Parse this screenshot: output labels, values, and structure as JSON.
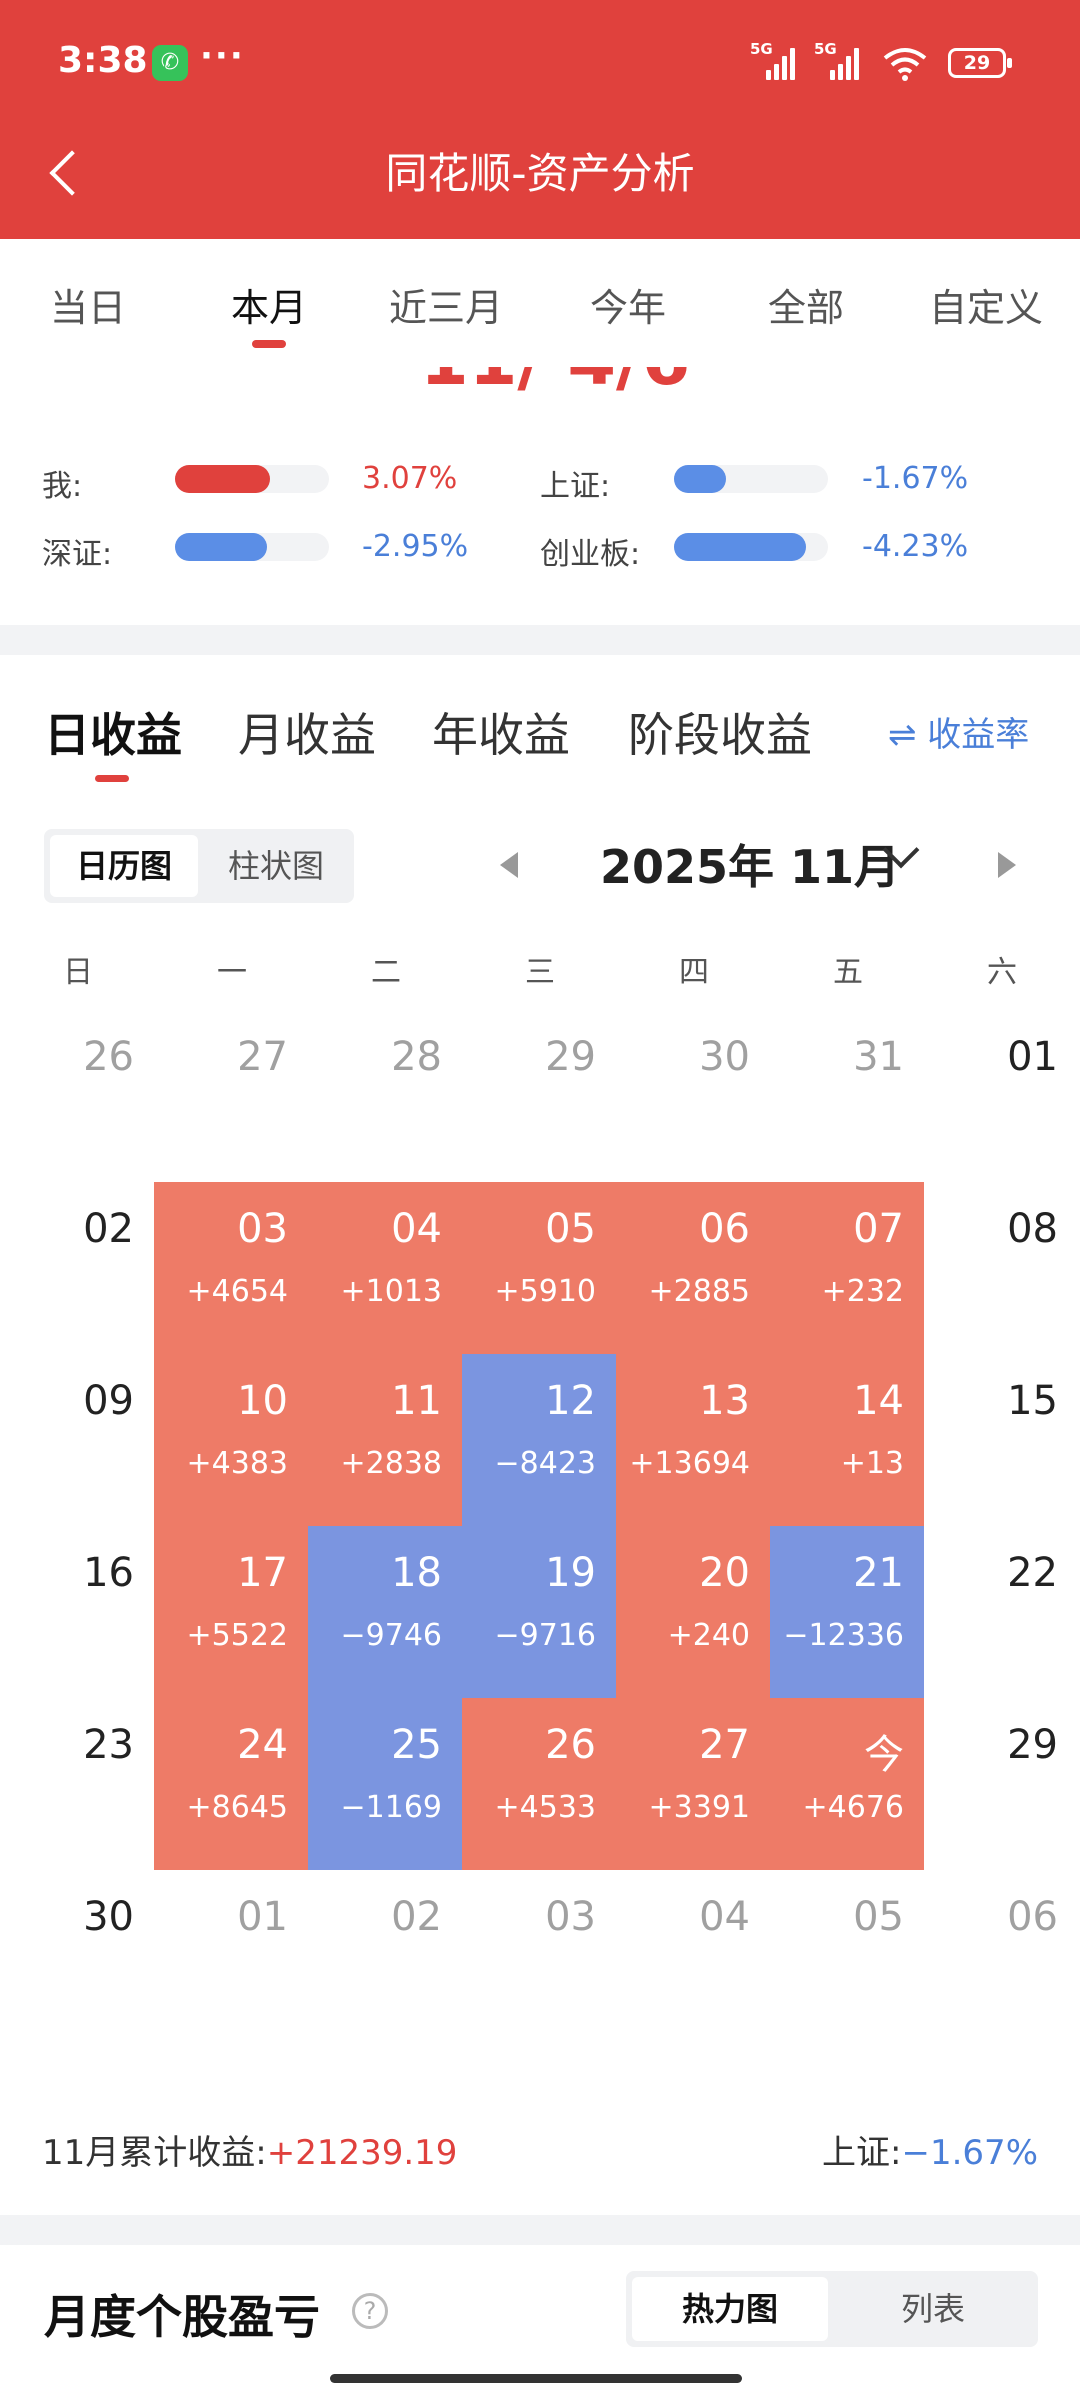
{
  "status_bar": {
    "time": "3:38",
    "dots": "···",
    "signal_1": "5G",
    "signal_2": "5G",
    "battery": "29"
  },
  "nav": {
    "title": "同花顺-资产分析"
  },
  "period_tabs": [
    "当日",
    "本月",
    "近三月",
    "今年",
    "全部",
    "自定义"
  ],
  "period_tabs_active": "本月",
  "compare": {
    "cut_text": "11/ 4/6",
    "rows": [
      {
        "label": "我:",
        "value": "3.07%",
        "fill": 0.62,
        "color": "#e0413d"
      },
      {
        "label": "上证:",
        "value": "-1.67%",
        "fill": 0.34,
        "color": "#5b8ee6"
      },
      {
        "label": "深证:",
        "value": "-2.95%",
        "fill": 0.6,
        "color": "#5b8ee6"
      },
      {
        "label": "创业板:",
        "value": "-4.23%",
        "fill": 0.86,
        "color": "#5b8ee6"
      }
    ]
  },
  "profit_tabs": [
    "日收益",
    "月收益",
    "年收益",
    "阶段收益"
  ],
  "rate_toggle": "⇌ 收益率",
  "view_toggle": {
    "calendar": "日历图",
    "bar": "柱状图"
  },
  "month_label": "2025年 11月",
  "weekdays": [
    "日",
    "一",
    "二",
    "三",
    "四",
    "五",
    "六"
  ],
  "calendar": [
    [
      {
        "d": "26",
        "t": "muted"
      },
      {
        "d": "27",
        "t": "muted"
      },
      {
        "d": "28",
        "t": "muted"
      },
      {
        "d": "29",
        "t": "muted"
      },
      {
        "d": "30",
        "t": "muted"
      },
      {
        "d": "31",
        "t": "muted"
      },
      {
        "d": "01",
        "t": "plain"
      }
    ],
    [
      {
        "d": "02",
        "t": "plain"
      },
      {
        "d": "03",
        "v": "+4654",
        "t": "pos"
      },
      {
        "d": "04",
        "v": "+1013",
        "t": "pos"
      },
      {
        "d": "05",
        "v": "+5910",
        "t": "pos"
      },
      {
        "d": "06",
        "v": "+2885",
        "t": "pos"
      },
      {
        "d": "07",
        "v": "+232",
        "t": "pos"
      },
      {
        "d": "08",
        "t": "plain"
      }
    ],
    [
      {
        "d": "09",
        "t": "plain"
      },
      {
        "d": "10",
        "v": "+4383",
        "t": "pos"
      },
      {
        "d": "11",
        "v": "+2838",
        "t": "pos"
      },
      {
        "d": "12",
        "v": "−8423",
        "t": "neg"
      },
      {
        "d": "13",
        "v": "+13694",
        "t": "pos"
      },
      {
        "d": "14",
        "v": "+13",
        "t": "pos"
      },
      {
        "d": "15",
        "t": "plain"
      }
    ],
    [
      {
        "d": "16",
        "t": "plain"
      },
      {
        "d": "17",
        "v": "+5522",
        "t": "pos"
      },
      {
        "d": "18",
        "v": "−9746",
        "t": "neg"
      },
      {
        "d": "19",
        "v": "−9716",
        "t": "neg"
      },
      {
        "d": "20",
        "v": "+240",
        "t": "pos"
      },
      {
        "d": "21",
        "v": "−12336",
        "t": "neg"
      },
      {
        "d": "22",
        "t": "plain"
      }
    ],
    [
      {
        "d": "23",
        "t": "plain"
      },
      {
        "d": "24",
        "v": "+8645",
        "t": "pos"
      },
      {
        "d": "25",
        "v": "−1169",
        "t": "neg"
      },
      {
        "d": "26",
        "v": "+4533",
        "t": "pos"
      },
      {
        "d": "27",
        "v": "+3391",
        "t": "pos"
      },
      {
        "d": "今",
        "v": "+4676",
        "t": "pos"
      },
      {
        "d": "29",
        "t": "plain"
      }
    ],
    [
      {
        "d": "30",
        "t": "plain"
      },
      {
        "d": "01",
        "t": "muted"
      },
      {
        "d": "02",
        "t": "muted"
      },
      {
        "d": "03",
        "t": "muted"
      },
      {
        "d": "04",
        "t": "muted"
      },
      {
        "d": "05",
        "t": "muted"
      },
      {
        "d": "06",
        "t": "muted"
      }
    ]
  ],
  "summary": {
    "label": "11月累计收益:",
    "value": "+21239.19",
    "index_label": "上证:",
    "index_value": "−1.67%"
  },
  "section": {
    "title": "月度个股盈亏",
    "help": "?",
    "toggle_on": "热力图",
    "toggle_off": "列表"
  },
  "colors": {
    "brand": "#e0413d",
    "profit": "#ee7b67",
    "loss": "#7b95e0",
    "blue": "#4a7fd8"
  }
}
